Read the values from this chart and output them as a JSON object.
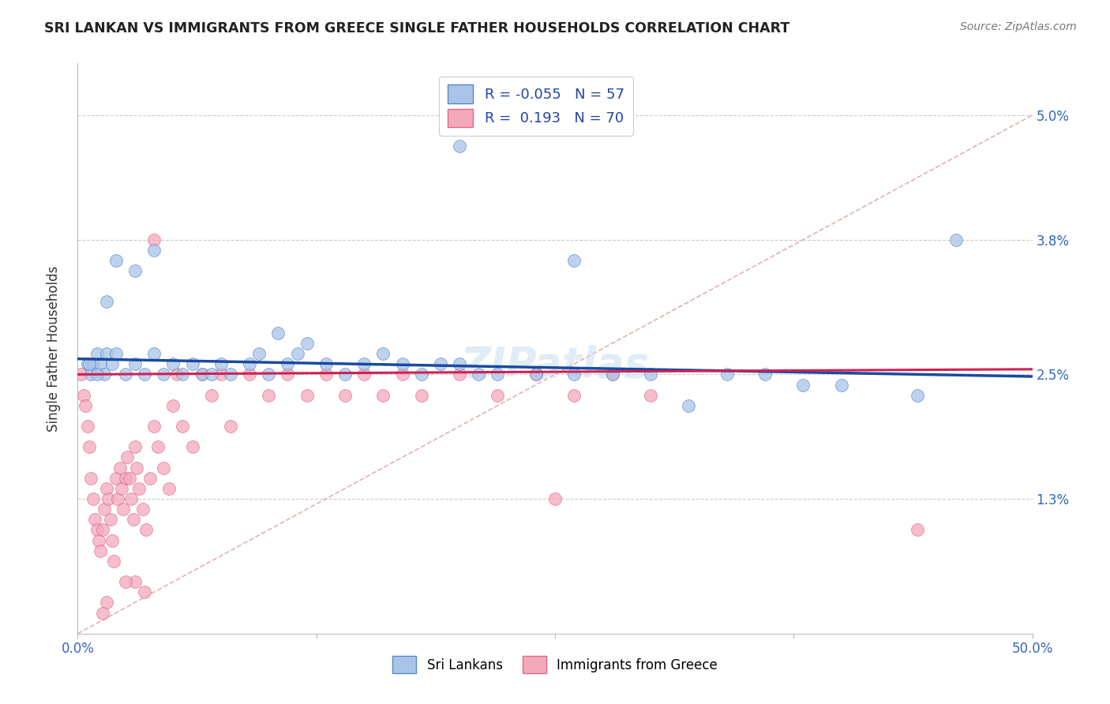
{
  "title": "SRI LANKAN VS IMMIGRANTS FROM GREECE SINGLE FATHER HOUSEHOLDS CORRELATION CHART",
  "source_text": "Source: ZipAtlas.com",
  "ylabel": "Single Father Households",
  "xlim": [
    0.0,
    50.0
  ],
  "ylim": [
    0.0,
    5.5
  ],
  "ytick_vals": [
    1.3,
    2.5,
    3.8,
    5.0
  ],
  "ytick_labels": [
    "1.3%",
    "2.5%",
    "3.8%",
    "5.0%"
  ],
  "xtick_vals": [
    0.0,
    50.0
  ],
  "xtick_labels": [
    "0.0%",
    "50.0%"
  ],
  "sri_lankan_color": "#aac4e8",
  "sri_lankan_edge": "#5588cc",
  "greece_color": "#f4a8bc",
  "greece_edge": "#e06888",
  "blue_line_color": "#1a4a9e",
  "pink_line_color": "#cc2255",
  "diag_line_color": "#ddaaaa",
  "R_sri": -0.055,
  "N_sri": 57,
  "R_greece": 0.193,
  "N_greece": 70,
  "legend_label_sri": "Sri Lankans",
  "legend_label_greece": "Immigrants from Greece",
  "watermark": "ZIPatlas",
  "sri_x": [
    0.5,
    0.7,
    0.8,
    1.0,
    1.2,
    1.4,
    1.5,
    1.8,
    2.0,
    2.5,
    3.0,
    3.5,
    4.0,
    4.5,
    5.0,
    5.5,
    6.0,
    6.5,
    7.0,
    7.5,
    8.0,
    9.0,
    9.5,
    10.0,
    10.5,
    11.0,
    11.5,
    12.0,
    13.0,
    14.0,
    15.0,
    16.0,
    17.0,
    18.0,
    19.0,
    20.0,
    21.0,
    22.0,
    24.0,
    26.0,
    28.0,
    30.0,
    34.0,
    36.0,
    38.0,
    40.0,
    44.0,
    46.0,
    26.0,
    20.0,
    4.0,
    3.0,
    2.0,
    1.5,
    1.0,
    0.6,
    32.0
  ],
  "sri_y": [
    2.6,
    2.5,
    2.6,
    2.7,
    2.6,
    2.5,
    2.7,
    2.6,
    2.7,
    2.5,
    2.6,
    2.5,
    2.7,
    2.5,
    2.6,
    2.5,
    2.6,
    2.5,
    2.5,
    2.6,
    2.5,
    2.6,
    2.7,
    2.5,
    2.9,
    2.6,
    2.7,
    2.8,
    2.6,
    2.5,
    2.6,
    2.7,
    2.6,
    2.5,
    2.6,
    2.6,
    2.5,
    2.5,
    2.5,
    2.5,
    2.5,
    2.5,
    2.5,
    2.5,
    2.4,
    2.4,
    2.3,
    3.8,
    3.6,
    4.7,
    3.7,
    3.5,
    3.6,
    3.2,
    2.5,
    2.6,
    2.2
  ],
  "greece_x": [
    0.2,
    0.3,
    0.4,
    0.5,
    0.6,
    0.7,
    0.8,
    0.9,
    1.0,
    1.1,
    1.2,
    1.3,
    1.4,
    1.5,
    1.6,
    1.7,
    1.8,
    1.9,
    2.0,
    2.1,
    2.2,
    2.3,
    2.4,
    2.5,
    2.6,
    2.7,
    2.8,
    2.9,
    3.0,
    3.1,
    3.2,
    3.4,
    3.6,
    3.8,
    4.0,
    4.2,
    4.5,
    4.8,
    5.0,
    5.5,
    6.0,
    6.5,
    7.0,
    7.5,
    8.0,
    9.0,
    10.0,
    11.0,
    12.0,
    13.0,
    14.0,
    15.0,
    16.0,
    17.0,
    18.0,
    20.0,
    22.0,
    24.0,
    26.0,
    28.0,
    30.0,
    4.0,
    5.2,
    3.0,
    1.5,
    1.3,
    2.5,
    3.5,
    44.0,
    25.0
  ],
  "greece_y": [
    2.5,
    2.3,
    2.2,
    2.0,
    1.8,
    1.5,
    1.3,
    1.1,
    1.0,
    0.9,
    0.8,
    1.0,
    1.2,
    1.4,
    1.3,
    1.1,
    0.9,
    0.7,
    1.5,
    1.3,
    1.6,
    1.4,
    1.2,
    1.5,
    1.7,
    1.5,
    1.3,
    1.1,
    1.8,
    1.6,
    1.4,
    1.2,
    1.0,
    1.5,
    2.0,
    1.8,
    1.6,
    1.4,
    2.2,
    2.0,
    1.8,
    2.5,
    2.3,
    2.5,
    2.0,
    2.5,
    2.3,
    2.5,
    2.3,
    2.5,
    2.3,
    2.5,
    2.3,
    2.5,
    2.3,
    2.5,
    2.3,
    2.5,
    2.3,
    2.5,
    2.3,
    3.8,
    2.5,
    0.5,
    0.3,
    0.2,
    0.5,
    0.4,
    1.0,
    1.3
  ]
}
